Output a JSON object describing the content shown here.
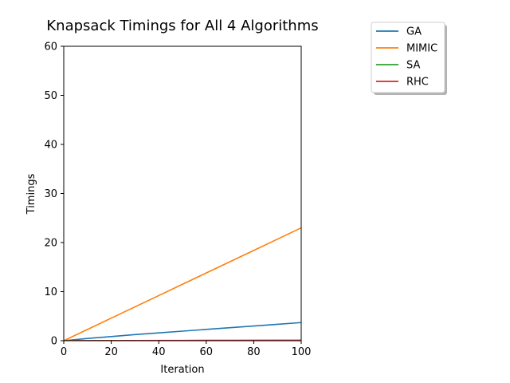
{
  "chart_data": {
    "type": "line",
    "title": "Knapsack Timings for All 4 Algorithms",
    "xlabel": "Iteration",
    "ylabel": "Timings",
    "xlim": [
      0,
      100
    ],
    "ylim": [
      0,
      60
    ],
    "xticks": [
      0,
      20,
      40,
      60,
      80,
      100
    ],
    "yticks": [
      0,
      10,
      20,
      30,
      40,
      50,
      60
    ],
    "grid": false,
    "legend_position": "outside-top-right",
    "x": [
      0,
      10,
      20,
      30,
      40,
      50,
      60,
      70,
      80,
      90,
      100
    ],
    "series": [
      {
        "name": "GA",
        "color": "#1f77b4",
        "values": [
          0,
          0.45,
          0.85,
          1.25,
          1.6,
          1.95,
          2.3,
          2.65,
          3.0,
          3.35,
          3.7
        ]
      },
      {
        "name": "MIMIC",
        "color": "#ff7f0e",
        "values": [
          0,
          2.3,
          4.6,
          6.9,
          9.2,
          11.5,
          13.8,
          16.1,
          18.4,
          20.7,
          23.0
        ]
      },
      {
        "name": "SA",
        "color": "#2ca02c",
        "values": [
          0,
          0.02,
          0.03,
          0.04,
          0.05,
          0.06,
          0.07,
          0.08,
          0.09,
          0.1,
          0.1
        ]
      },
      {
        "name": "RHC",
        "color": "#d62728",
        "values": [
          0,
          0.01,
          0.02,
          0.03,
          0.03,
          0.04,
          0.05,
          0.05,
          0.06,
          0.07,
          0.07
        ]
      }
    ]
  }
}
